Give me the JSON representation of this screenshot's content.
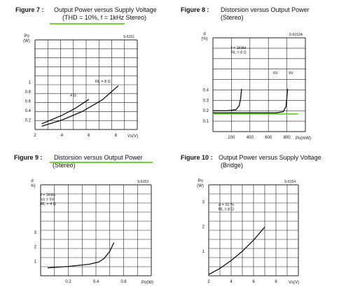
{
  "colors": {
    "highlight": "#6fd23a",
    "ink": "#111111",
    "grid": "#222222"
  },
  "figures": [
    {
      "label": "Figure 7 :",
      "caption": "Output Power versus Supply Voltage",
      "caption2": "(THD = 10%, f = 1kHz Stereo)"
    },
    {
      "label": "Figure 8 :",
      "caption": "Distorsion versus Output Power",
      "caption2": "(Stereo)"
    },
    {
      "label": "Figure 9 :",
      "caption": "Distorsion versus Output Power",
      "caption2": "(Stereo)"
    },
    {
      "label": "Figure 10 :",
      "caption": "Output Power versus Supply Voltage",
      "caption2": "(Bridge)"
    }
  ],
  "chart_data": [
    {
      "type": "line",
      "id": "S-6151",
      "ylabel": "Po\n(W)",
      "xlabel": "Vs(V)",
      "xlim": [
        2,
        9.6
      ],
      "ylim": [
        0,
        1.9
      ],
      "xticks": [
        2,
        4,
        6,
        8
      ],
      "yticks": [
        0.2,
        0.4,
        0.6,
        0.8,
        1
      ],
      "grid": true,
      "series": [
        {
          "name": "RL = 8 Ω",
          "x": [
            2.5,
            4,
            5.5,
            7,
            8.2
          ],
          "y": [
            0.07,
            0.2,
            0.38,
            0.63,
            0.93
          ]
        },
        {
          "name": "4 Ω",
          "x": [
            2.5,
            4,
            5,
            6
          ],
          "y": [
            0.12,
            0.3,
            0.45,
            0.64
          ]
        }
      ]
    },
    {
      "type": "line",
      "id": "S-6152A",
      "ylabel": "d\n(%)",
      "xlabel": "Po(mW)",
      "xlim": [
        0,
        1000
      ],
      "ylim": [
        0,
        0.9
      ],
      "xticks": [
        200,
        400,
        600,
        800
      ],
      "yticks": [
        0.1,
        0.2,
        0.3,
        0.4
      ],
      "grid": true,
      "annotation": "f = 1KHz\nRL = 8 Ω",
      "series": [
        {
          "name": "6V",
          "x": [
            0,
            150,
            250,
            285,
            300,
            310
          ],
          "y": [
            0.2,
            0.2,
            0.21,
            0.25,
            0.32,
            0.41
          ]
        },
        {
          "name": "9V",
          "x": [
            0,
            400,
            680,
            760,
            790,
            800,
            808
          ],
          "y": [
            0.18,
            0.18,
            0.18,
            0.19,
            0.24,
            0.33,
            0.41
          ]
        }
      ],
      "highlight_level": 0.17
    },
    {
      "type": "line",
      "id": "S-6153",
      "ylabel": "d\n(%)",
      "xlabel": "Po(W)",
      "xlim": [
        0,
        0.8
      ],
      "ylim": [
        0,
        6.3
      ],
      "xticks": [
        0.2,
        0.4,
        0.6
      ],
      "yticks": [
        1,
        2,
        3
      ],
      "grid": true,
      "annotation": "f = 1KHz\nVs = 5V\nRL = 4 Ω",
      "series": [
        {
          "name": "d",
          "x": [
            0.05,
            0.2,
            0.35,
            0.42,
            0.46,
            0.5,
            0.53
          ],
          "y": [
            0.55,
            0.65,
            0.8,
            0.95,
            1.2,
            1.7,
            2.3
          ]
        }
      ]
    },
    {
      "type": "line",
      "id": "S-6154",
      "ylabel": "Po\n(W)",
      "xlabel": "Vs(V)",
      "xlim": [
        2,
        10
      ],
      "ylim": [
        0,
        3.7
      ],
      "xticks": [
        2,
        4,
        6,
        8
      ],
      "yticks": [
        1,
        2,
        3
      ],
      "grid": true,
      "annotation": "d = 10 %\nRL = 8 Ω",
      "series": [
        {
          "name": "Po",
          "x": [
            2,
            3,
            4,
            5,
            6,
            7
          ],
          "y": [
            0.05,
            0.3,
            0.62,
            1,
            1.45,
            1.98
          ]
        }
      ]
    }
  ]
}
